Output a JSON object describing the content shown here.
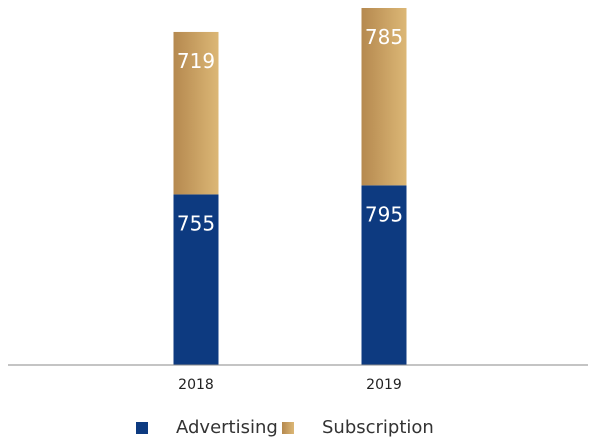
{
  "chart_data": {
    "type": "bar",
    "stacked": true,
    "categories": [
      "2018",
      "2019"
    ],
    "series": [
      {
        "name": "Advertising",
        "values": [
          755,
          795
        ],
        "color": "#0d3a80"
      },
      {
        "name": "Subscription",
        "values": [
          719,
          785
        ],
        "color_gradient": [
          "#b5894f",
          "#dcb776"
        ]
      }
    ],
    "ylim": [
      0,
      1580
    ],
    "grid": false,
    "yaxis_visible": false,
    "legend_position": "bottom"
  }
}
